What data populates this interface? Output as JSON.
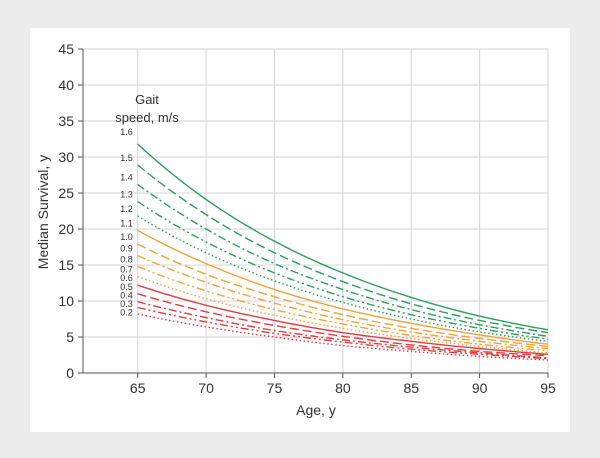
{
  "chart_data": {
    "type": "line",
    "xlabel": "Age, y",
    "ylabel": "Median Survival, y",
    "legend_title": [
      "Gait",
      "speed, m/s"
    ],
    "xlim": [
      61,
      95
    ],
    "ylim": [
      0,
      45
    ],
    "xticks": [
      65,
      70,
      75,
      80,
      85,
      90,
      95
    ],
    "yticks": [
      0,
      5,
      10,
      15,
      20,
      25,
      30,
      35,
      40,
      45
    ],
    "grid": true,
    "colors": {
      "green": "#2e9e5b",
      "orange": "#f2a23a",
      "red": "#e23c3f"
    },
    "x": [
      65,
      70,
      75,
      80,
      85,
      90,
      95
    ],
    "series": [
      {
        "name": "1.6",
        "color": "green",
        "style": "solid",
        "values": [
          31.8,
          24.1,
          18.3,
          13.9,
          10.5,
          7.9,
          6.0
        ]
      },
      {
        "name": "1.5",
        "color": "green",
        "style": "longdash",
        "values": [
          28.9,
          22.0,
          16.7,
          12.7,
          9.6,
          7.3,
          5.6
        ]
      },
      {
        "name": "1.4",
        "color": "green",
        "style": "dashdot",
        "values": [
          26.2,
          20.0,
          15.2,
          11.6,
          8.8,
          6.7,
          5.1
        ]
      },
      {
        "name": "1.3",
        "color": "green",
        "style": "dashdotdot",
        "values": [
          23.8,
          18.2,
          13.9,
          10.6,
          8.1,
          6.2,
          4.7
        ]
      },
      {
        "name": "1.2",
        "color": "green",
        "style": "dotted",
        "values": [
          21.8,
          16.7,
          12.8,
          9.8,
          7.5,
          5.7,
          4.4
        ]
      },
      {
        "name": "1.1",
        "color": "orange",
        "style": "solid",
        "values": [
          19.8,
          15.2,
          11.6,
          8.9,
          6.9,
          5.3,
          4.0
        ]
      },
      {
        "name": "1.0",
        "color": "orange",
        "style": "longdash",
        "values": [
          17.9,
          13.7,
          10.6,
          8.1,
          6.2,
          4.8,
          3.7
        ]
      },
      {
        "name": "0.9",
        "color": "orange",
        "style": "dashdot",
        "values": [
          16.3,
          12.6,
          9.7,
          7.4,
          5.7,
          4.4,
          3.4
        ]
      },
      {
        "name": "0.8",
        "color": "orange",
        "style": "dashdotdot",
        "values": [
          14.8,
          11.4,
          8.8,
          6.8,
          5.2,
          4.0,
          3.1
        ]
      },
      {
        "name": "0.7",
        "color": "orange",
        "style": "dotted",
        "values": [
          13.4,
          10.3,
          8.0,
          6.2,
          4.8,
          3.7,
          2.8
        ]
      },
      {
        "name": "0.6",
        "color": "red",
        "style": "solid",
        "values": [
          12.2,
          9.4,
          7.3,
          5.6,
          4.4,
          3.4,
          2.6
        ]
      },
      {
        "name": "0.5",
        "color": "red",
        "style": "longdash",
        "values": [
          11.0,
          8.5,
          6.6,
          5.1,
          3.9,
          3.0,
          2.4
        ]
      },
      {
        "name": "0.4",
        "color": "red",
        "style": "dashdot",
        "values": [
          9.9,
          7.7,
          5.9,
          4.6,
          3.6,
          2.8,
          2.1
        ]
      },
      {
        "name": "0.3",
        "color": "red",
        "style": "dashdotdot",
        "values": [
          9.1,
          7.1,
          5.5,
          4.3,
          3.3,
          2.6,
          2.0
        ]
      },
      {
        "name": "0.2",
        "color": "red",
        "style": "dotted",
        "values": [
          8.2,
          6.4,
          5.0,
          3.8,
          3.0,
          2.3,
          1.8
        ]
      }
    ]
  }
}
